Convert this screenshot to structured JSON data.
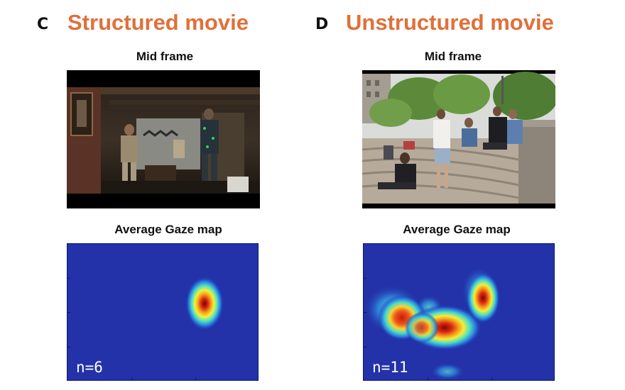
{
  "panels": {
    "c": {
      "letter": "C",
      "title": "Structured movie",
      "frame_label": "Mid frame",
      "gaze_label": "Average Gaze map",
      "n_text": "n=6"
    },
    "d": {
      "letter": "D",
      "title": "Unstructured movie",
      "frame_label": "Mid frame",
      "gaze_label": "Average Gaze map",
      "n_text": "n=11"
    }
  },
  "colors": {
    "title": "#e0703a",
    "heatmap_background": "#2332a8"
  }
}
